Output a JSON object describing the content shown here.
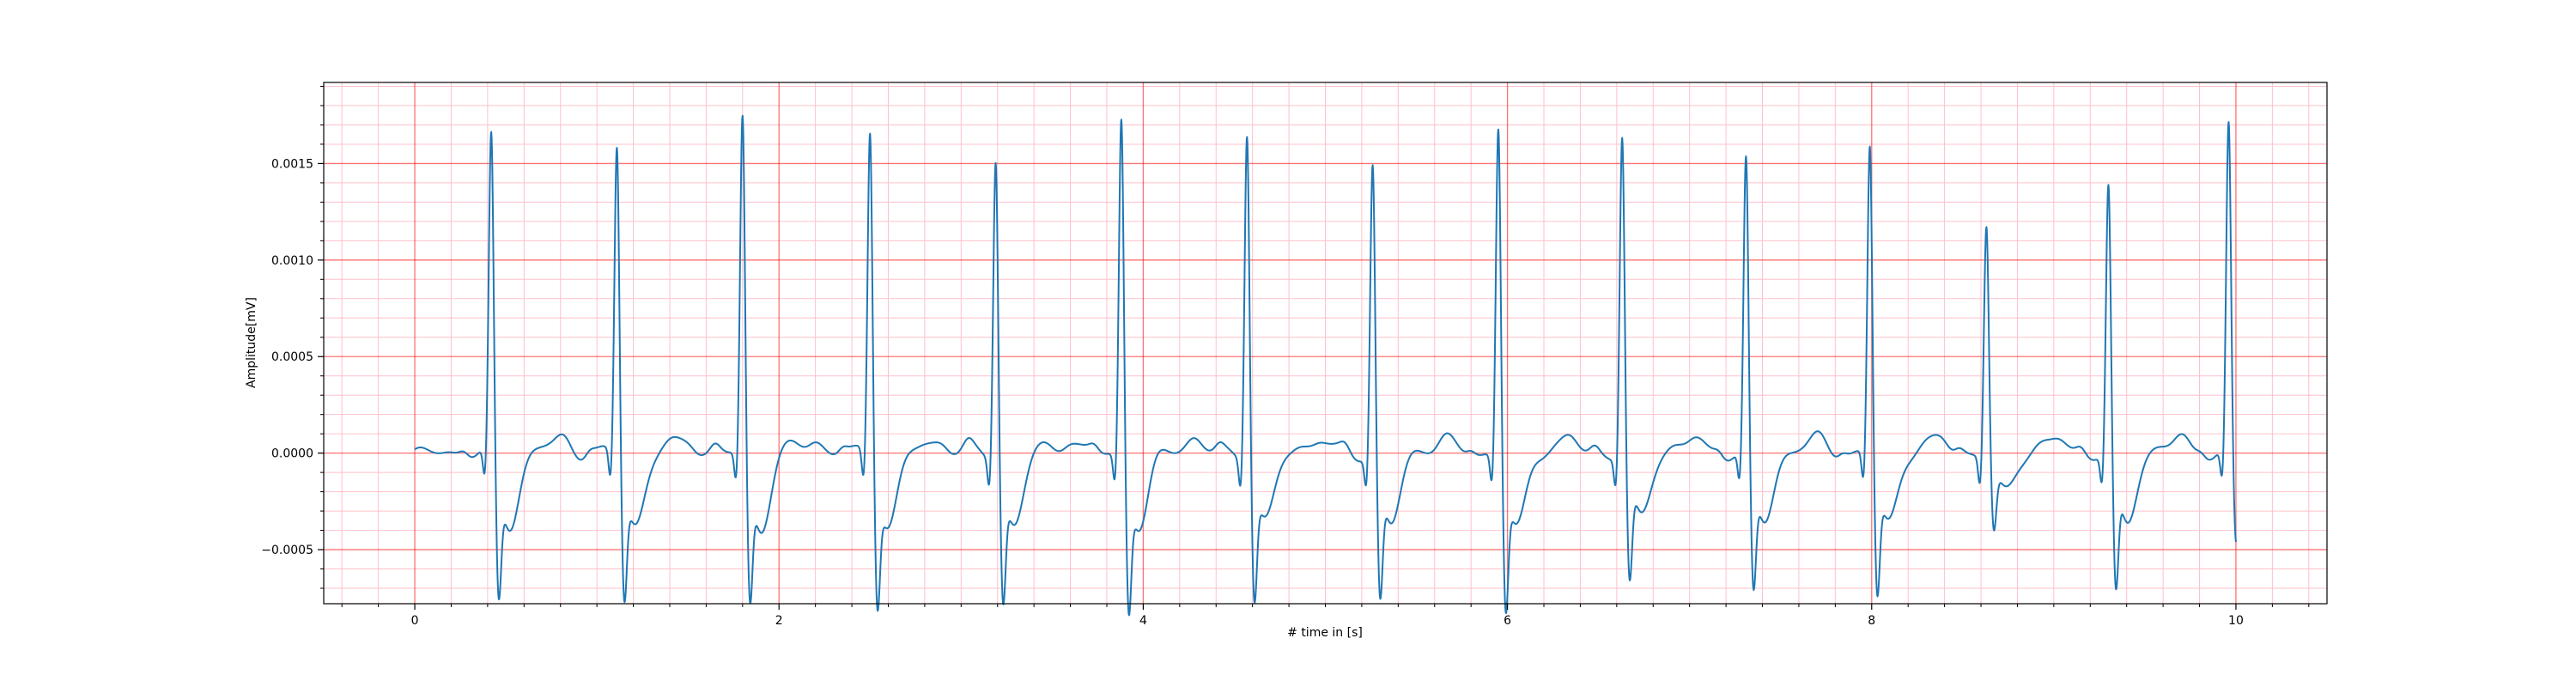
{
  "chart_data": {
    "type": "line",
    "title": "",
    "xlabel": "# time in [s]",
    "ylabel": "Amplitude[mV]",
    "xlim": [
      -0.5,
      10.5
    ],
    "ylim": [
      -0.00078,
      0.00192
    ],
    "x_ticks": [
      0,
      2,
      4,
      6,
      8,
      10
    ],
    "x_tick_labels": [
      "0",
      "2",
      "4",
      "6",
      "8",
      "10"
    ],
    "y_ticks": [
      -0.0005,
      0.0,
      0.0005,
      0.001,
      0.0015
    ],
    "y_tick_labels": [
      "−0.0005",
      "0.0000",
      "0.0005",
      "0.0010",
      "0.0015"
    ],
    "grid": {
      "major": true,
      "minor": true,
      "major_color": "#ff0000",
      "minor_color": "#ffc0cb"
    },
    "series": [
      {
        "color": "#1f77b4",
        "sampling_interval_s": 0.01,
        "x_range": [
          0,
          10
        ],
        "beats": [
          {
            "t": 0.42,
            "r": 0.00168,
            "s": -0.0006
          },
          {
            "t": 1.11,
            "r": 0.00164,
            "s": -0.00059
          },
          {
            "t": 1.8,
            "r": 0.00179,
            "s": -0.00061
          },
          {
            "t": 2.5,
            "r": 0.00173,
            "s": -0.0006
          },
          {
            "t": 3.19,
            "r": 0.00159,
            "s": -0.0006
          },
          {
            "t": 3.88,
            "r": 0.0018,
            "s": -0.00063
          },
          {
            "t": 4.57,
            "r": 0.00174,
            "s": -0.00059
          },
          {
            "t": 5.26,
            "r": 0.00155,
            "s": -0.0006
          },
          {
            "t": 5.95,
            "r": 0.00175,
            "s": -0.00064
          },
          {
            "t": 6.63,
            "r": 0.00169,
            "s": -0.00054
          },
          {
            "t": 7.31,
            "r": 0.00156,
            "s": -0.00057
          },
          {
            "t": 7.99,
            "r": 0.00164,
            "s": -0.00058
          },
          {
            "t": 8.63,
            "r": 0.00121,
            "s": -0.00033
          },
          {
            "t": 9.3,
            "r": 0.00142,
            "s": -0.00058
          },
          {
            "t": 9.96,
            "r": 0.00172,
            "s": -0.00038
          }
        ]
      }
    ]
  }
}
